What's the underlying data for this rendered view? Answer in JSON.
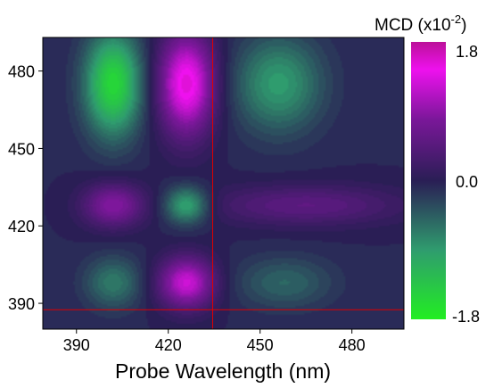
{
  "chart_data": {
    "type": "heatmap",
    "title": "",
    "xlabel": "Probe Wavelength (nm)",
    "ylabel": "",
    "xlim": [
      379,
      497
    ],
    "ylim": [
      380,
      493
    ],
    "x_ticks": [
      390,
      420,
      450,
      480
    ],
    "y_ticks": [
      390,
      420,
      450,
      480
    ],
    "colorbar": {
      "title_main": "MCD (x10",
      "title_exp": "-2",
      "title_close": ")",
      "range": [
        -1.8,
        1.8
      ],
      "tick_labels": [
        "1.8",
        "0.0",
        "-1.8"
      ],
      "colors": [
        "#22ee22",
        "#2f9c6e",
        "#2a1e55",
        "#7a1799",
        "#ee11ee",
        "#bb1199"
      ]
    },
    "features": [
      {
        "x": 402,
        "y": 475,
        "sx": 6.5,
        "sy": 14,
        "value": -1.5
      },
      {
        "x": 426,
        "y": 475,
        "sx": 6.5,
        "sy": 14,
        "value": 1.6
      },
      {
        "x": 456,
        "y": 475,
        "sx": 10,
        "sy": 13,
        "value": -0.85
      },
      {
        "x": 402,
        "y": 428,
        "sx": 7,
        "sy": 6,
        "value": 0.9
      },
      {
        "x": 426,
        "y": 428,
        "sx": 5,
        "sy": 5,
        "value": -1.0
      },
      {
        "x": 465,
        "y": 428,
        "sx": 22,
        "sy": 5.5,
        "value": 0.55
      },
      {
        "x": 402,
        "y": 398,
        "sx": 6.5,
        "sy": 7,
        "value": -0.6
      },
      {
        "x": 426,
        "y": 398,
        "sx": 6.5,
        "sy": 7,
        "value": 1.3
      },
      {
        "x": 458,
        "y": 398,
        "sx": 11,
        "sy": 7,
        "value": -0.45
      }
    ],
    "crosshair": {
      "x": 434.5,
      "y": 387.5,
      "color": "#e00000"
    }
  }
}
